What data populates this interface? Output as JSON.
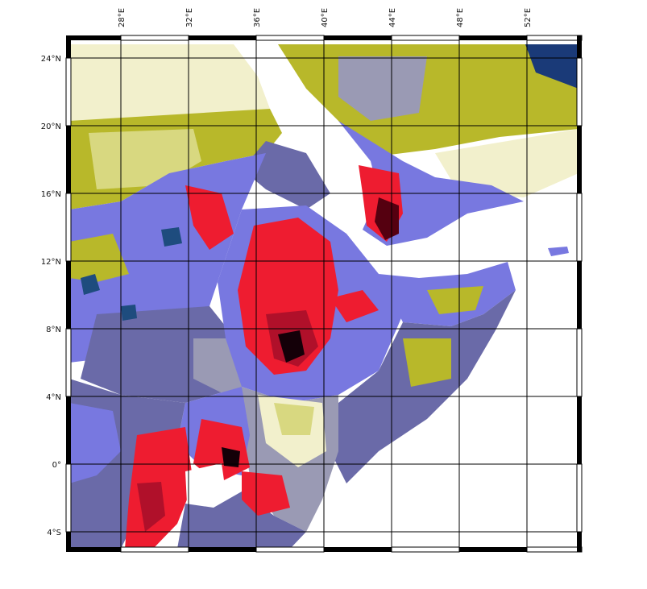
{
  "map": {
    "lon_ticks": [
      "28°E",
      "32°E",
      "36°E",
      "40°E",
      "44°E",
      "48°E",
      "52°E"
    ],
    "lat_ticks": [
      "24°N",
      "20°N",
      "16°N",
      "12°N",
      "8°N",
      "4°N",
      "0°",
      "4°S"
    ],
    "lon_range": [
      25,
      55
    ],
    "lat_range": [
      -5,
      25
    ],
    "grid": true,
    "colors": {
      "water": "#ffffff",
      "olive": "#b8b82a",
      "olive_light": "#d8d880",
      "pale": "#f2f0cc",
      "periwinkle": "#7878e0",
      "slate": "#6a6aa8",
      "navy": "#1a3a78",
      "teal_blue": "#1e4c7e",
      "grey_blue": "#9a9ab4",
      "red": "#ee1c30",
      "crimson": "#b0102a",
      "maroon": "#550010",
      "black": "#140008"
    }
  }
}
